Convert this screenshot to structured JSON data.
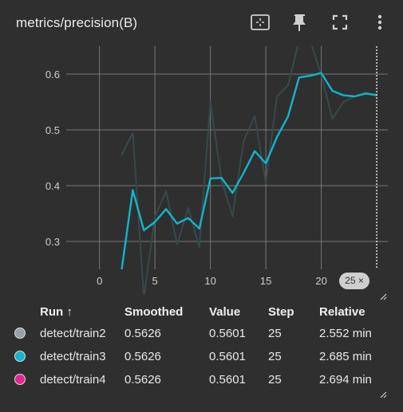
{
  "card": {
    "title": "metrics/precision(B)",
    "tools": [
      "fit-domain-icon",
      "pin-icon",
      "fullscreen-icon",
      "more-vert-icon"
    ],
    "step_badge": "25 ×"
  },
  "chart_data": {
    "type": "line",
    "title": "metrics/precision(B)",
    "xlabel": "",
    "ylabel": "",
    "xlim": [
      -3,
      26
    ],
    "ylim": [
      0.25,
      0.65
    ],
    "x_ticks": [
      0,
      5,
      10,
      15,
      20
    ],
    "y_ticks": [
      0.3,
      0.4,
      0.5,
      0.6
    ],
    "grid": true,
    "hover_step": 25,
    "series": [
      {
        "name": "detect/train3",
        "style": "raw",
        "color": "#37494c",
        "x": [
          2,
          3,
          4,
          5,
          6,
          7,
          8,
          9,
          10,
          11,
          12,
          13,
          14,
          15,
          16,
          17,
          18,
          19,
          20,
          21,
          22,
          23,
          24,
          25
        ],
        "y": [
          0.455,
          0.495,
          0.2,
          0.345,
          0.39,
          0.295,
          0.36,
          0.29,
          0.55,
          0.41,
          0.345,
          0.48,
          0.525,
          0.405,
          0.56,
          0.58,
          0.66,
          0.66,
          0.598,
          0.52,
          0.55,
          0.56,
          0.568,
          0.5601
        ]
      },
      {
        "name": "detect/train3",
        "style": "smoothed",
        "color": "#12b5cb",
        "x": [
          2,
          3,
          4,
          5,
          6,
          7,
          8,
          9,
          10,
          11,
          12,
          13,
          14,
          15,
          16,
          17,
          18,
          19,
          20,
          21,
          22,
          23,
          24,
          25
        ],
        "y": [
          0.25,
          0.392,
          0.32,
          0.335,
          0.358,
          0.332,
          0.342,
          0.323,
          0.413,
          0.414,
          0.387,
          0.423,
          0.462,
          0.44,
          0.487,
          0.524,
          0.594,
          0.597,
          0.602,
          0.57,
          0.562,
          0.56,
          0.565,
          0.5626
        ]
      }
    ]
  },
  "table": {
    "headers": {
      "run": "Run ↑",
      "smoothed": "Smoothed",
      "value": "Value",
      "step": "Step",
      "relative": "Relative"
    },
    "rows": [
      {
        "color": "#9aa0a6",
        "run": "detect/train2",
        "smoothed": "0.5626",
        "value": "0.5601",
        "step": "25",
        "relative": "2.552 min"
      },
      {
        "color": "#12b5cb",
        "run": "detect/train3",
        "smoothed": "0.5626",
        "value": "0.5601",
        "step": "25",
        "relative": "2.685 min"
      },
      {
        "color": "#e52592",
        "run": "detect/train4",
        "smoothed": "0.5626",
        "value": "0.5601",
        "step": "25",
        "relative": "2.694 min"
      }
    ]
  }
}
